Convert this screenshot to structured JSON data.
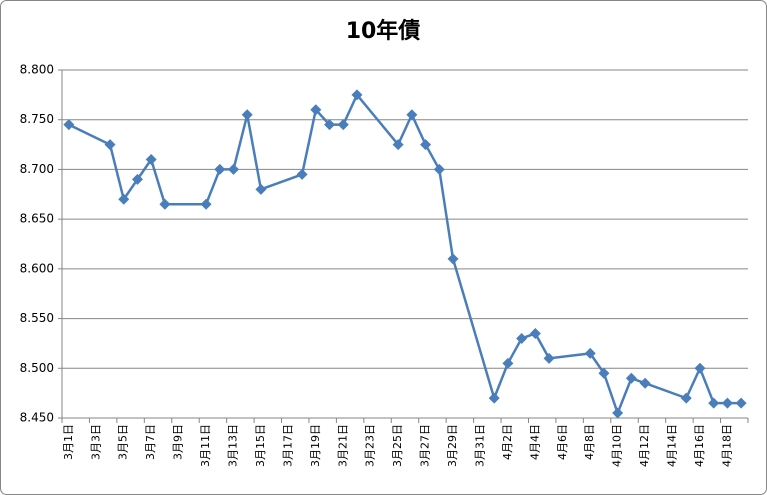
{
  "chart_data": {
    "type": "line",
    "title": "10年債",
    "categories": [
      "3月1日",
      null,
      "3月3日",
      null,
      "3月5日",
      null,
      "3月7日",
      null,
      "3月9日",
      null,
      "3月11日",
      null,
      "3月13日",
      null,
      "3月15日",
      null,
      "3月17日",
      null,
      "3月19日",
      null,
      "3月21日",
      null,
      "3月23日",
      null,
      "3月25日",
      null,
      "3月27日",
      null,
      "3月29日",
      null,
      "3月31日",
      null,
      "4月2日",
      null,
      "4月4日",
      null,
      "4月6日",
      null,
      "4月8日",
      null,
      "4月10日",
      null,
      "4月12日",
      null,
      "4月14日",
      null,
      "4月16日",
      null,
      "4月18日",
      null
    ],
    "series": [
      {
        "color": "#4a7ebb",
        "values": [
          8.745,
          null,
          null,
          8.725,
          8.67,
          8.69,
          8.71,
          8.665,
          null,
          null,
          8.665,
          8.7,
          8.7,
          8.755,
          8.68,
          null,
          null,
          8.695,
          8.76,
          8.745,
          8.745,
          8.775,
          null,
          null,
          8.725,
          8.755,
          8.725,
          8.7,
          8.61,
          null,
          null,
          8.47,
          8.505,
          8.53,
          8.535,
          8.51,
          null,
          null,
          8.515,
          8.495,
          8.455,
          8.49,
          8.485,
          null,
          null,
          8.47,
          8.5,
          8.465,
          8.465,
          8.465
        ]
      }
    ],
    "ylim": [
      8.45,
      8.8
    ],
    "yticks": [
      {
        "value": 8.45,
        "label": "8.450"
      },
      {
        "value": 8.5,
        "label": "8.500"
      },
      {
        "value": 8.55,
        "label": "8.550"
      },
      {
        "value": 8.6,
        "label": "8.600"
      },
      {
        "value": 8.65,
        "label": "8.650"
      },
      {
        "value": 8.7,
        "label": "8.700"
      },
      {
        "value": 8.75,
        "label": "8.750"
      },
      {
        "value": 8.8,
        "label": "8.800"
      }
    ],
    "grid": true
  }
}
